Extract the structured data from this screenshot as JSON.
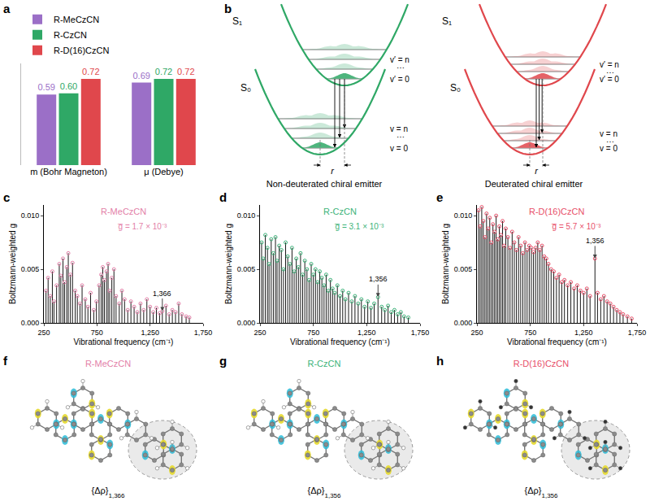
{
  "panel_labels": [
    "a",
    "b",
    "c",
    "d",
    "e",
    "f",
    "g",
    "h"
  ],
  "chart_data": [
    {
      "type": "bar",
      "categories": [
        "m (Bohr Magneton)",
        "μ (Debye)"
      ],
      "series": [
        {
          "name": "R-MeCzCN",
          "color": "#9b6fc7",
          "values": [
            0.59,
            0.69
          ],
          "value_labels": [
            "0.59",
            "0.69"
          ]
        },
        {
          "name": "R-CzCN",
          "color": "#2fa866",
          "values": [
            0.6,
            0.72
          ],
          "value_labels": [
            "0.60",
            "0.72"
          ]
        },
        {
          "name": "R-D(16)CzCN",
          "color": "#e0474c",
          "values": [
            0.72,
            0.72
          ],
          "value_labels": [
            "0.72",
            "0.72"
          ]
        }
      ],
      "ylim": [
        0,
        0.85
      ],
      "data_labels": true,
      "tick_labels": "x",
      "legend": "top-left"
    },
    {
      "type": "stem",
      "title": "R-MeCzCN",
      "subtitle": "g̅ = 1.7 × 10⁻³",
      "color": "#e37fa8",
      "marker": "circle-open",
      "x_label": "Vibrational frequency (cm⁻¹)",
      "y_label": "Boltzmann-weighted g",
      "x": [
        270,
        290,
        310,
        330,
        345,
        370,
        395,
        410,
        430,
        445,
        465,
        480,
        500,
        520,
        545,
        565,
        590,
        610,
        640,
        665,
        690,
        720,
        745,
        770,
        790,
        805,
        820,
        840,
        855,
        870,
        890,
        910,
        930,
        960,
        985,
        1010,
        1040,
        1070,
        1100,
        1130,
        1160,
        1190,
        1220,
        1250,
        1280,
        1310,
        1340,
        1366,
        1400,
        1430,
        1460,
        1490,
        1520,
        1550,
        1590,
        1620
      ],
      "values": [
        0.003,
        0.0042,
        0.0025,
        0.0048,
        0.002,
        0.0035,
        0.0055,
        0.0044,
        0.006,
        0.0038,
        0.0052,
        0.0065,
        0.0045,
        0.0056,
        0.003,
        0.0025,
        0.0018,
        0.0035,
        0.0022,
        0.0015,
        0.0028,
        0.0012,
        0.002,
        0.0035,
        0.0045,
        0.0052,
        0.004,
        0.0048,
        0.0055,
        0.003,
        0.0042,
        0.005,
        0.0025,
        0.0018,
        0.003,
        0.0022,
        0.0012,
        0.002,
        0.0015,
        0.001,
        0.0018,
        0.0012,
        0.0022,
        0.0015,
        0.001,
        0.0014,
        0.0009,
        0.0011,
        0.0016,
        0.0008,
        0.0012,
        0.001,
        0.0018,
        0.0008,
        0.0006,
        0.0005
      ],
      "xlim": [
        250,
        1750
      ],
      "xticks": [
        250,
        750,
        {
          "value": 1250,
          "label": "1,250"
        },
        {
          "value": 1750,
          "label": "1,750"
        }
      ],
      "ylim": [
        0,
        0.011
      ],
      "yticks": [
        {
          "value": 0,
          "label": "0.000"
        },
        0.005,
        {
          "value": 0.01,
          "label": "0.010"
        }
      ],
      "annotations": [
        {
          "x": 1366,
          "text": "1,366"
        }
      ]
    },
    {
      "type": "stem",
      "title": "R-CzCN",
      "subtitle": "g̅ = 3.1 × 10⁻³",
      "color": "#3db37a",
      "marker": "circle-open",
      "x_label": "Vibrational frequency (cm⁻¹)",
      "y_label": "Boltzmann-weighted g",
      "x": [
        265,
        280,
        300,
        320,
        335,
        355,
        375,
        395,
        410,
        430,
        450,
        470,
        490,
        510,
        530,
        550,
        570,
        590,
        610,
        630,
        650,
        670,
        690,
        710,
        730,
        750,
        770,
        790,
        810,
        830,
        850,
        870,
        890,
        910,
        930,
        950,
        975,
        1000,
        1025,
        1050,
        1080,
        1110,
        1140,
        1170,
        1200,
        1230,
        1260,
        1290,
        1320,
        1356,
        1390,
        1420,
        1450,
        1480,
        1510,
        1540,
        1570,
        1600,
        1640
      ],
      "values": [
        0.0075,
        0.006,
        0.0082,
        0.007,
        0.0055,
        0.0078,
        0.0065,
        0.008,
        0.0058,
        0.0072,
        0.0068,
        0.005,
        0.0075,
        0.0062,
        0.0055,
        0.007,
        0.0048,
        0.006,
        0.0052,
        0.0065,
        0.0045,
        0.0058,
        0.005,
        0.004,
        0.0055,
        0.0045,
        0.005,
        0.0038,
        0.0048,
        0.0042,
        0.0035,
        0.0045,
        0.003,
        0.004,
        0.0032,
        0.0028,
        0.0035,
        0.0025,
        0.003,
        0.0022,
        0.0028,
        0.002,
        0.0025,
        0.0018,
        0.0022,
        0.0015,
        0.002,
        0.0014,
        0.0018,
        0.0024,
        0.0015,
        0.0012,
        0.0016,
        0.001,
        0.0012,
        0.0008,
        0.001,
        0.0006,
        0.0005
      ],
      "xlim": [
        250,
        1750
      ],
      "xticks": [
        250,
        750,
        {
          "value": 1250,
          "label": "1,250"
        },
        {
          "value": 1750,
          "label": "1,750"
        }
      ],
      "ylim": [
        0,
        0.011
      ],
      "yticks": [
        {
          "value": 0,
          "label": "0.000"
        },
        0.005,
        {
          "value": 0.01,
          "label": "0.010"
        }
      ],
      "annotations": [
        {
          "x": 1356,
          "text": "1,356"
        }
      ]
    },
    {
      "type": "stem",
      "title": "R-D(16)CzCN",
      "subtitle": "g̅ = 5.7 × 10⁻³",
      "color": "#e8506a",
      "marker": "circle-open",
      "x_label": "Vibrational frequency (cm⁻¹)",
      "y_label": "Boltzmann-weighted g",
      "x": [
        265,
        280,
        295,
        310,
        325,
        340,
        355,
        370,
        385,
        400,
        415,
        430,
        445,
        460,
        475,
        490,
        505,
        520,
        540,
        560,
        580,
        600,
        620,
        640,
        660,
        680,
        700,
        720,
        740,
        760,
        780,
        800,
        820,
        840,
        860,
        880,
        900,
        920,
        945,
        970,
        995,
        1020,
        1045,
        1070,
        1100,
        1130,
        1160,
        1190,
        1220,
        1250,
        1280,
        1310,
        1356,
        1380,
        1410,
        1440,
        1470,
        1500,
        1530,
        1560,
        1590,
        1620,
        1660,
        1700
      ],
      "values": [
        0.0105,
        0.009,
        0.0108,
        0.0095,
        0.008,
        0.0102,
        0.0088,
        0.0098,
        0.0075,
        0.0092,
        0.0085,
        0.01,
        0.0078,
        0.009,
        0.0082,
        0.0095,
        0.0072,
        0.0088,
        0.008,
        0.007,
        0.0085,
        0.0075,
        0.0068,
        0.008,
        0.0072,
        0.0065,
        0.0075,
        0.0068,
        0.0072,
        0.007,
        0.0066,
        0.007,
        0.0075,
        0.0068,
        0.0072,
        0.0062,
        0.006,
        0.0055,
        0.005,
        0.0048,
        0.0042,
        0.0045,
        0.0038,
        0.004,
        0.0035,
        0.0038,
        0.0032,
        0.0035,
        0.003,
        0.0028,
        0.0032,
        0.0025,
        0.006,
        0.0028,
        0.0022,
        0.0025,
        0.002,
        0.0018,
        0.0015,
        0.0012,
        0.001,
        0.0008,
        0.0006,
        0.0004
      ],
      "xlim": [
        250,
        1750
      ],
      "xticks": [
        250,
        750,
        {
          "value": 1250,
          "label": "1,250"
        },
        {
          "value": 1750,
          "label": "1,750"
        }
      ],
      "ylim": [
        0,
        0.011
      ],
      "yticks": [
        {
          "value": 0,
          "label": "0.000"
        },
        0.005,
        {
          "value": 0.01,
          "label": "0.010"
        }
      ],
      "annotations": [
        {
          "x": 1356,
          "text": "1,356"
        }
      ]
    }
  ],
  "diagram": {
    "panels": [
      {
        "title": "Non-deuterated chiral emitter",
        "color": "#2fa866"
      },
      {
        "title": "Deuterated chiral emitter",
        "color": "#e0474c"
      }
    ],
    "state_labels": [
      "S₁",
      "S₀"
    ],
    "level_labels": [
      "v′ = n",
      "v′ = 0",
      "v = n",
      "v = 0"
    ],
    "ellipsis": "⋯",
    "displacement_label": "r"
  },
  "molecules": [
    {
      "title": "R-MeCzCN",
      "color": "#e37fa8",
      "label": "{Δρ}",
      "subscript": "1,366"
    },
    {
      "title": "R-CzCN",
      "color": "#3db37a",
      "label": "{Δρ}",
      "subscript": "1,356"
    },
    {
      "title": "R-D(16)CzCN",
      "color": "#e8506a",
      "label": "{Δρ}",
      "subscript": "1,356"
    }
  ]
}
